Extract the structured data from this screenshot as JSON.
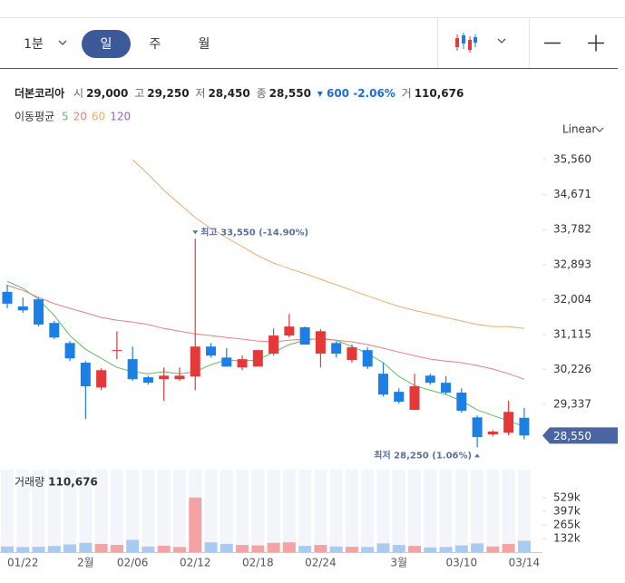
{
  "toolbar": {
    "intervals": [
      "1분",
      "일",
      "주",
      "월"
    ],
    "selected": 1,
    "scale": "Linear"
  },
  "quote": {
    "name": "더본코리아",
    "items": [
      {
        "label": "시",
        "text": "29,000"
      },
      {
        "label": "고",
        "text": "29,250"
      },
      {
        "label": "저",
        "text": "28,450"
      },
      {
        "label": "종",
        "text": "28,550"
      }
    ],
    "change": "▾ 600 -2.06%",
    "volume_label": "거",
    "volume": "110,676"
  },
  "chart_data": {
    "type": "candlestick",
    "ma_label": "이동평균",
    "categories": [
      null,
      "01/22",
      null,
      null,
      null,
      "2월",
      null,
      null,
      "02/06",
      null,
      null,
      null,
      "02/12",
      null,
      null,
      null,
      "02/18",
      null,
      null,
      null,
      "02/24",
      null,
      null,
      null,
      null,
      "3월",
      null,
      null,
      null,
      "03/10",
      null,
      null,
      null,
      "03/14"
    ],
    "open": [
      32200,
      31830,
      32010,
      31410,
      30900,
      30400,
      29770,
      30720,
      30490,
      30030,
      29980,
      29980,
      30050,
      30810,
      30530,
      30280,
      30300,
      30630,
      31090,
      31300,
      30630,
      30900,
      30470,
      30720,
      30120,
      29660,
      29200,
      30070,
      29890,
      29640,
      29010,
      28580,
      28620,
      29000
    ],
    "high": [
      32380,
      32050,
      32050,
      31460,
      30950,
      30440,
      30260,
      31200,
      30810,
      30070,
      30280,
      30280,
      33550,
      30900,
      30770,
      30580,
      30720,
      31270,
      31640,
      31320,
      31250,
      30950,
      30860,
      30790,
      30400,
      29750,
      30120,
      30120,
      30060,
      29750,
      29060,
      28690,
      29430,
      29250
    ],
    "low": [
      31780,
      31670,
      31320,
      31000,
      30440,
      28970,
      29700,
      30490,
      29940,
      29840,
      29430,
      29940,
      29700,
      30530,
      30300,
      30210,
      30300,
      30580,
      31040,
      30860,
      30280,
      30530,
      30400,
      30240,
      29540,
      29360,
      29200,
      29840,
      29590,
      29130,
      28250,
      28530,
      28550,
      28450
    ],
    "close": [
      31900,
      31730,
      31370,
      31040,
      30510,
      29800,
      30210,
      30720,
      29980,
      29890,
      30070,
      30070,
      30810,
      30580,
      30300,
      30490,
      30720,
      31090,
      31320,
      30860,
      31200,
      30630,
      30790,
      30300,
      29590,
      29410,
      29800,
      29890,
      29640,
      29180,
      28510,
      28650,
      29150,
      28550
    ],
    "series": [
      {
        "name": "5",
        "color": "#5cbf5c",
        "values": [
          32470,
          32290,
          32010,
          31600,
          31090,
          30740,
          30510,
          30280,
          30170,
          30120,
          30170,
          30120,
          30170,
          30350,
          30470,
          30440,
          30470,
          30670,
          30860,
          30970,
          31020,
          30970,
          30810,
          30630,
          30400,
          30050,
          29820,
          29700,
          29590,
          29430,
          29200,
          29060,
          28920,
          28780
        ]
      },
      {
        "name": "20",
        "color": "#ec7f80",
        "values": [
          32360,
          32240,
          32060,
          31900,
          31780,
          31670,
          31550,
          31480,
          31430,
          31370,
          31270,
          31200,
          31130,
          31090,
          31040,
          31000,
          30950,
          30930,
          30970,
          31000,
          31000,
          30970,
          30930,
          30860,
          30770,
          30670,
          30580,
          30490,
          30440,
          30400,
          30330,
          30240,
          30120,
          29980
        ]
      },
      {
        "name": "60",
        "color": "#f1a96a",
        "values": [
          null,
          null,
          null,
          null,
          null,
          null,
          null,
          null,
          35560,
          35190,
          34780,
          34430,
          34090,
          33810,
          33580,
          33350,
          33120,
          32930,
          32790,
          32660,
          32520,
          32380,
          32240,
          32100,
          31960,
          31830,
          31730,
          31640,
          31550,
          31460,
          31370,
          31320,
          31320,
          31270
        ]
      },
      {
        "name": "120",
        "color": "#9b5fc0",
        "values": [
          null,
          null,
          null,
          null,
          null,
          null,
          null,
          null,
          null,
          null,
          null,
          null,
          null,
          null,
          null,
          null,
          null,
          null,
          null,
          null,
          null,
          null,
          null,
          null,
          null,
          null,
          null,
          null,
          null,
          null,
          null,
          null,
          null,
          null
        ]
      }
    ],
    "up_color": "#e5383b",
    "down_color": "#1c7fe6",
    "ylim": [
      27820,
      35930
    ],
    "yticks": [
      {
        "value": 35560,
        "label": "35,560"
      },
      {
        "value": 34671,
        "label": "34,671"
      },
      {
        "value": 33782,
        "label": "33,782"
      },
      {
        "value": 32893,
        "label": "32,893"
      },
      {
        "value": 32004,
        "label": "32,004"
      },
      {
        "value": 31115,
        "label": "31,115"
      },
      {
        "value": 30226,
        "label": "30,226"
      },
      {
        "value": 29337,
        "label": "29,337"
      }
    ],
    "last": {
      "value": 28550,
      "label": "28,550"
    },
    "high_note": {
      "value": 33550,
      "text": "최고 33,550 (-14.90%)"
    },
    "low_note": {
      "value": 28250,
      "text": "최저 28,250 (1.06%)"
    },
    "volume": {
      "label": "거래량",
      "value_label": "110,676",
      "values": [
        55000,
        50000,
        52000,
        60000,
        75000,
        90000,
        80000,
        70000,
        120000,
        55000,
        62000,
        50000,
        530000,
        95000,
        80000,
        70000,
        65000,
        90000,
        95000,
        60000,
        70000,
        55000,
        52000,
        50000,
        85000,
        70000,
        60000,
        45000,
        50000,
        65000,
        85000,
        55000,
        80000,
        110676
      ],
      "up_color": "#f3a3a3",
      "down_color": "#a9cbf2",
      "ylim": [
        0,
        800000
      ],
      "yticks": [
        {
          "value": 529000,
          "label": "529k"
        },
        {
          "value": 397000,
          "label": "397k"
        },
        {
          "value": 265000,
          "label": "265k"
        },
        {
          "value": 132000,
          "label": "132k"
        }
      ]
    }
  }
}
